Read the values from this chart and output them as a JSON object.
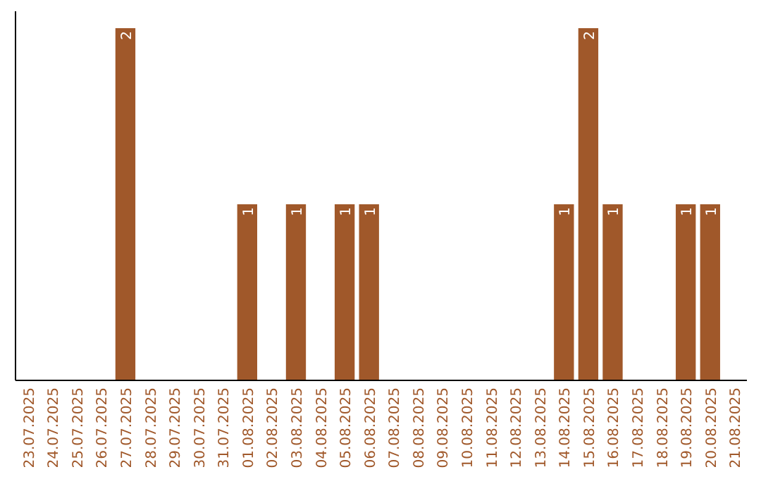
{
  "chart_data": {
    "type": "bar",
    "categories": [
      "23.07.2025",
      "24.07.2025",
      "25.07.2025",
      "26.07.2025",
      "27.07.2025",
      "28.07.2025",
      "29.07.2025",
      "30.07.2025",
      "31.07.2025",
      "01.08.2025",
      "02.08.2025",
      "03.08.2025",
      "04.08.2025",
      "05.08.2025",
      "06.08.2025",
      "07.08.2025",
      "08.08.2025",
      "09.08.2025",
      "10.08.2025",
      "11.08.2025",
      "12.08.2025",
      "13.08.2025",
      "14.08.2025",
      "15.08.2025",
      "16.08.2025",
      "17.08.2025",
      "18.08.2025",
      "19.08.2025",
      "20.08.2025",
      "21.08.2025"
    ],
    "values": [
      0,
      0,
      0,
      0,
      2,
      0,
      0,
      0,
      0,
      1,
      0,
      1,
      0,
      1,
      1,
      0,
      0,
      0,
      0,
      0,
      0,
      0,
      1,
      2,
      1,
      0,
      0,
      1,
      1,
      0
    ],
    "value_labels": [
      null,
      null,
      null,
      null,
      "2",
      null,
      null,
      null,
      null,
      "1",
      null,
      "1",
      null,
      "1",
      "1",
      null,
      null,
      null,
      null,
      null,
      null,
      null,
      "1",
      "2",
      "1",
      null,
      null,
      "1",
      "1",
      null
    ],
    "color": "#a0582a"
  }
}
